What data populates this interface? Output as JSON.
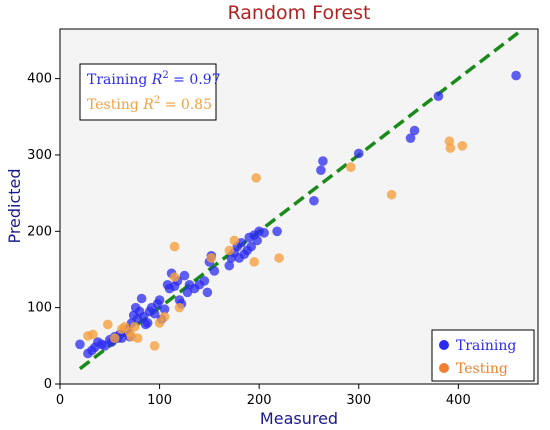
{
  "chart_data": {
    "type": "scatter",
    "title": "Random Forest",
    "xlabel": "Measured",
    "ylabel": "Predicted",
    "xlim": [
      0,
      480
    ],
    "ylim": [
      0,
      465
    ],
    "xticks": [
      0,
      100,
      200,
      300,
      400
    ],
    "yticks": [
      0,
      100,
      200,
      300,
      400
    ],
    "annotations": {
      "training": {
        "prefix": "Training ",
        "r": "R",
        "sup": "2",
        "suffix": " = 0.97"
      },
      "testing": {
        "prefix": "Testing ",
        "r": "R",
        "sup": "2",
        "suffix": " = 0.85"
      }
    },
    "legend": {
      "position": "lower-right",
      "entries": [
        "Training",
        "Testing"
      ]
    },
    "reference_line": {
      "name": "fit",
      "x": [
        20,
        460
      ],
      "y": [
        20,
        460
      ],
      "color": "#1a8a1a",
      "style": "dashed"
    },
    "series": [
      {
        "name": "Training",
        "color": "#2b2bf0",
        "points": [
          [
            20,
            52
          ],
          [
            28,
            40
          ],
          [
            32,
            44
          ],
          [
            35,
            48
          ],
          [
            38,
            55
          ],
          [
            42,
            52
          ],
          [
            45,
            50
          ],
          [
            50,
            58
          ],
          [
            52,
            55
          ],
          [
            55,
            62
          ],
          [
            58,
            60
          ],
          [
            60,
            65
          ],
          [
            62,
            60
          ],
          [
            65,
            70
          ],
          [
            68,
            72
          ],
          [
            70,
            62
          ],
          [
            72,
            80
          ],
          [
            74,
            90
          ],
          [
            76,
            100
          ],
          [
            78,
            85
          ],
          [
            80,
            95
          ],
          [
            82,
            112
          ],
          [
            84,
            88
          ],
          [
            86,
            78
          ],
          [
            88,
            80
          ],
          [
            90,
            95
          ],
          [
            92,
            100
          ],
          [
            95,
            92
          ],
          [
            98,
            105
          ],
          [
            100,
            110
          ],
          [
            102,
            85
          ],
          [
            105,
            98
          ],
          [
            108,
            130
          ],
          [
            110,
            125
          ],
          [
            112,
            145
          ],
          [
            115,
            128
          ],
          [
            118,
            135
          ],
          [
            120,
            110
          ],
          [
            122,
            105
          ],
          [
            125,
            142
          ],
          [
            128,
            120
          ],
          [
            130,
            130
          ],
          [
            135,
            125
          ],
          [
            140,
            130
          ],
          [
            145,
            135
          ],
          [
            148,
            120
          ],
          [
            150,
            160
          ],
          [
            152,
            168
          ],
          [
            155,
            148
          ],
          [
            170,
            155
          ],
          [
            172,
            165
          ],
          [
            175,
            172
          ],
          [
            178,
            180
          ],
          [
            180,
            165
          ],
          [
            182,
            185
          ],
          [
            185,
            170
          ],
          [
            188,
            175
          ],
          [
            190,
            192
          ],
          [
            192,
            180
          ],
          [
            195,
            195
          ],
          [
            198,
            188
          ],
          [
            200,
            200
          ],
          [
            205,
            198
          ],
          [
            218,
            200
          ],
          [
            255,
            240
          ],
          [
            262,
            280
          ],
          [
            264,
            292
          ],
          [
            300,
            302
          ],
          [
            352,
            322
          ],
          [
            356,
            332
          ],
          [
            380,
            377
          ],
          [
            458,
            404
          ]
        ]
      },
      {
        "name": "Testing",
        "color": "#f5a040",
        "points": [
          [
            28,
            63
          ],
          [
            33,
            65
          ],
          [
            48,
            78
          ],
          [
            55,
            60
          ],
          [
            62,
            72
          ],
          [
            65,
            75
          ],
          [
            70,
            68
          ],
          [
            72,
            62
          ],
          [
            75,
            75
          ],
          [
            78,
            60
          ],
          [
            95,
            50
          ],
          [
            100,
            80
          ],
          [
            105,
            88
          ],
          [
            115,
            140
          ],
          [
            115,
            180
          ],
          [
            120,
            100
          ],
          [
            152,
            165
          ],
          [
            170,
            175
          ],
          [
            175,
            188
          ],
          [
            195,
            160
          ],
          [
            197,
            270
          ],
          [
            220,
            165
          ],
          [
            292,
            284
          ],
          [
            333,
            248
          ],
          [
            391,
            318
          ],
          [
            392,
            309
          ],
          [
            404,
            312
          ]
        ]
      }
    ]
  }
}
